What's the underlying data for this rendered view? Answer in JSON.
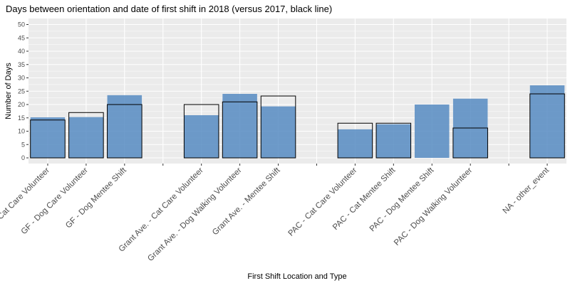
{
  "chart_data": {
    "type": "bar",
    "title": "Days between orientation and date of first shift in 2018 (versus 2017, black line)",
    "xlabel": "First Shift Location and Type",
    "ylabel": "Number of Days",
    "ylim": [
      0,
      52
    ],
    "yticks": [
      0,
      5,
      10,
      15,
      20,
      25,
      30,
      35,
      40,
      45,
      50
    ],
    "grid": true,
    "categories": [
      "Cat Care Volunteer",
      "GF - Dog Care Volunteer",
      "GF - Dog Mentee Shift",
      "",
      "Grant Ave. - Cat Care Volunteer",
      "Grant Ave. - Dog Walking Volunteer",
      "Grant Ave. - Mentee Shift",
      "",
      "PAC - Cat Care Volunteer",
      "PAC - Cat Mentee Shift",
      "PAC - Dog Mentee Shift",
      "PAC - Dog Walking Volunteer",
      "",
      "NA - other_event"
    ],
    "series": [
      {
        "values": [
          15.2,
          15.3,
          23.5,
          null,
          16,
          24,
          19.3,
          null,
          10.7,
          12.6,
          20,
          22.2,
          null,
          27.2
        ]
      },
      {
        "values": [
          14.2,
          17,
          20,
          null,
          20,
          21,
          23.2,
          null,
          13,
          13,
          null,
          11.2,
          null,
          24
        ]
      }
    ],
    "colors": {
      "bar_fill": "#4F86C0",
      "outline": "#000000",
      "panel": "#EBEBEB",
      "grid": "#FFFFFF"
    }
  }
}
